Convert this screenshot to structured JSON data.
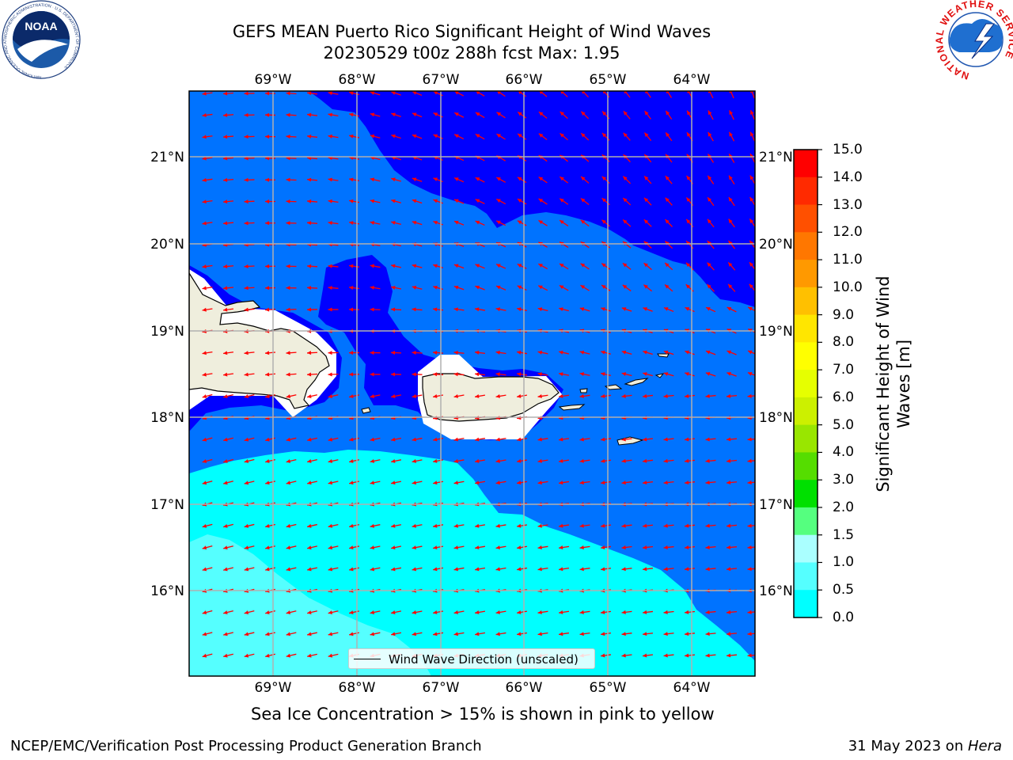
{
  "header": {
    "title_line1": "GEFS MEAN Puerto Rico Significant Height of Wind Waves",
    "title_line2": "20230529 t00z 288h fcst   Max: 1.95"
  },
  "logos": {
    "left": "noaa-logo",
    "right": "national-weather-service-logo",
    "left_text": "NOAA",
    "left_ring_text": "NATIONAL OCEANIC AND ATMOSPHERIC ADMINISTRATION · U.S. DEPARTMENT OF COMMERCE",
    "right_ring_text": "NATIONAL WEATHER SERVICE"
  },
  "map": {
    "lon_labels": [
      "69°W",
      "68°W",
      "67°W",
      "66°W",
      "65°W",
      "64°W"
    ],
    "lat_labels": [
      "21°N",
      "20°N",
      "19°N",
      "18°N",
      "17°N",
      "16°N"
    ],
    "legend_label": "Wind Wave Direction (unscaled)",
    "arrow_color": "#ff0000",
    "land_color": "#efeedd"
  },
  "colorbar": {
    "label": "Significant Height of Wind Waves [m]",
    "label_line1": "Significant Height of Wind",
    "label_line2": "Waves [m]",
    "ticks": [
      "15.0",
      "14.0",
      "13.0",
      "12.0",
      "11.0",
      "10.0",
      "9.0",
      "8.0",
      "7.0",
      "6.0",
      "5.0",
      "4.0",
      "3.0",
      "2.0",
      "1.5",
      "1.0",
      "0.5",
      "0.0"
    ],
    "colors": [
      "#0000ff",
      "#0073ff",
      "#00ffff",
      "#55ffff",
      "#aaffff",
      "#55ff7f",
      "#00e000",
      "#55dd00",
      "#99e600",
      "#ccf000",
      "#e6ff00",
      "#ffff00",
      "#ffe600",
      "#ffc000",
      "#ff9900",
      "#ff7700",
      "#ff5000",
      "#ff2a00",
      "#ff0000"
    ]
  },
  "notes": {
    "sea_ice": "Sea Ice Concentration > 15% is shown in pink to yellow"
  },
  "footer": {
    "left": "NCEP/EMC/Verification Post Processing Product Generation Branch",
    "right_prefix": "31 May 2023 on ",
    "right_host": "Hera"
  }
}
